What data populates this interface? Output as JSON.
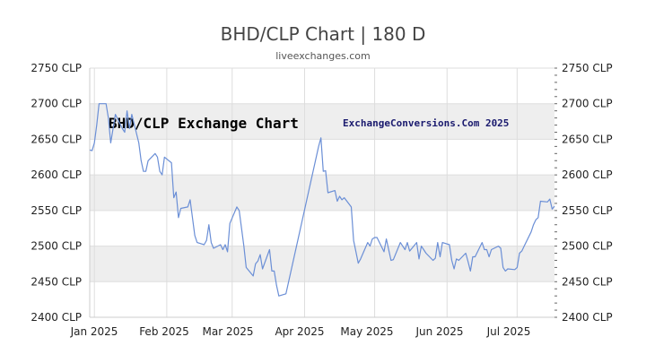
{
  "header": {
    "title": "BHD/CLP Chart | 180 D",
    "subtitle": "liveexchanges.com"
  },
  "chart_data": {
    "type": "line",
    "title": "BHD/CLP Chart | 180 D",
    "inner_title": "BHD/CLP Exchange Chart",
    "inner_credit": "ExchangeConversions.Com 2025",
    "y_tick_labels": [
      "2750 CLP",
      "2700 CLP",
      "2650 CLP",
      "2600 CLP",
      "2550 CLP",
      "2500 CLP",
      "2450 CLP",
      "2400 CLP"
    ],
    "x_tick_labels": [
      "Jan 2025",
      "Feb 2025",
      "Mar 2025",
      "Apr 2025",
      "May 2025",
      "Jun 2025",
      "Jul 2025"
    ],
    "ylim": [
      2400,
      2750
    ],
    "xlim": [
      "2024-12-30",
      "2025-07-17"
    ],
    "grid": true,
    "colors": {
      "line": "#6b8fd6",
      "band": "#eeeeee",
      "grid": "#dddddd"
    },
    "series": [
      {
        "x": [
          "2024-12-30",
          "2024-12-31",
          "2025-01-01",
          "2025-01-02",
          "2025-01-03",
          "2025-01-06",
          "2025-01-07",
          "2025-01-08",
          "2025-01-09",
          "2025-01-10",
          "2025-01-13",
          "2025-01-14",
          "2025-01-15",
          "2025-01-16",
          "2025-01-17",
          "2025-01-20",
          "2025-01-21",
          "2025-01-22",
          "2025-01-23",
          "2025-01-24",
          "2025-01-27",
          "2025-01-28",
          "2025-01-29",
          "2025-01-30",
          "2025-01-31",
          "2025-02-03",
          "2025-02-04",
          "2025-02-05",
          "2025-02-06",
          "2025-02-07",
          "2025-02-10",
          "2025-02-11",
          "2025-02-12",
          "2025-02-13",
          "2025-02-14",
          "2025-02-17",
          "2025-02-18",
          "2025-02-19",
          "2025-02-20",
          "2025-02-21",
          "2025-02-24",
          "2025-02-25",
          "2025-02-26",
          "2025-02-27",
          "2025-02-28",
          "2025-03-03",
          "2025-03-04",
          "2025-03-05",
          "2025-03-06",
          "2025-03-07",
          "2025-03-10",
          "2025-03-11",
          "2025-03-12",
          "2025-03-13",
          "2025-03-14",
          "2025-03-17",
          "2025-03-18",
          "2025-03-19",
          "2025-03-20",
          "2025-03-21",
          "2025-03-24",
          "2025-04-07",
          "2025-04-08",
          "2025-04-09",
          "2025-04-10",
          "2025-04-11",
          "2025-04-14",
          "2025-04-15",
          "2025-04-16",
          "2025-04-17",
          "2025-04-18",
          "2025-04-21",
          "2025-04-22",
          "2025-04-23",
          "2025-04-24",
          "2025-04-25",
          "2025-04-28",
          "2025-04-29",
          "2025-04-30",
          "2025-05-01",
          "2025-05-02",
          "2025-05-05",
          "2025-05-06",
          "2025-05-07",
          "2025-05-08",
          "2025-05-09",
          "2025-05-12",
          "2025-05-13",
          "2025-05-14",
          "2025-05-15",
          "2025-05-16",
          "2025-05-19",
          "2025-05-20",
          "2025-05-21",
          "2025-05-22",
          "2025-05-23",
          "2025-05-26",
          "2025-05-27",
          "2025-05-28",
          "2025-05-29",
          "2025-05-30",
          "2025-06-02",
          "2025-06-03",
          "2025-06-04",
          "2025-06-05",
          "2025-06-06",
          "2025-06-09",
          "2025-06-10",
          "2025-06-11",
          "2025-06-12",
          "2025-06-13",
          "2025-06-16",
          "2025-06-17",
          "2025-06-18",
          "2025-06-19",
          "2025-06-20",
          "2025-06-23",
          "2025-06-24",
          "2025-06-25",
          "2025-06-26",
          "2025-06-27",
          "2025-06-30",
          "2025-07-01",
          "2025-07-02",
          "2025-07-03",
          "2025-07-04",
          "2025-07-07",
          "2025-07-08",
          "2025-07-09",
          "2025-07-10",
          "2025-07-11",
          "2025-07-14",
          "2025-07-15",
          "2025-07-16",
          "2025-07-17"
        ],
        "values": [
          2635,
          2634,
          2645,
          2670,
          2700,
          2700,
          2680,
          2645,
          2665,
          2685,
          2665,
          2660,
          2690,
          2665,
          2685,
          2645,
          2620,
          2605,
          2605,
          2620,
          2630,
          2625,
          2605,
          2600,
          2625,
          2617,
          2568,
          2576,
          2540,
          2553,
          2555,
          2565,
          2540,
          2515,
          2505,
          2502,
          2508,
          2530,
          2505,
          2497,
          2502,
          2495,
          2502,
          2492,
          2532,
          2555,
          2550,
          2525,
          2500,
          2470,
          2458,
          2475,
          2479,
          2488,
          2468,
          2495,
          2465,
          2465,
          2445,
          2430,
          2433,
          2640,
          2652,
          2605,
          2606,
          2575,
          2578,
          2563,
          2570,
          2565,
          2568,
          2555,
          2508,
          2492,
          2476,
          2482,
          2505,
          2500,
          2510,
          2512,
          2512,
          2492,
          2510,
          2495,
          2480,
          2481,
          2505,
          2500,
          2495,
          2505,
          2493,
          2505,
          2482,
          2500,
          2495,
          2490,
          2480,
          2483,
          2505,
          2485,
          2505,
          2502,
          2480,
          2468,
          2482,
          2480,
          2490,
          2478,
          2465,
          2485,
          2485,
          2505,
          2495,
          2495,
          2485,
          2495,
          2500,
          2497,
          2470,
          2465,
          2468,
          2467,
          2470,
          2490,
          2493,
          2500,
          2520,
          2530,
          2537,
          2540,
          2563,
          2562,
          2566,
          2552,
          2556
        ]
      }
    ]
  }
}
